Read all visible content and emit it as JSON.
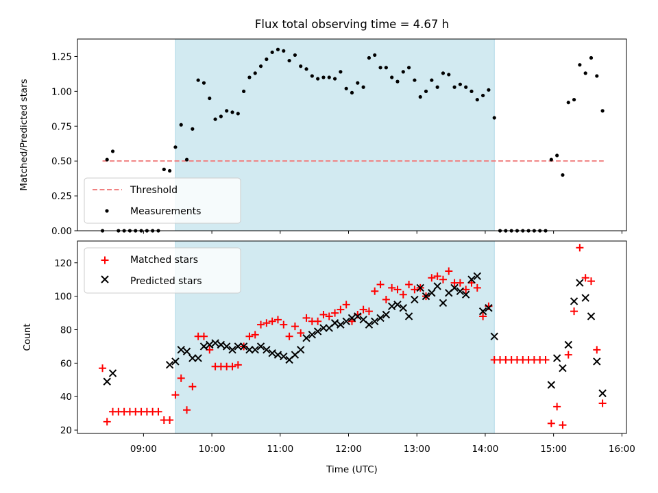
{
  "figure": {
    "title": "Flux total observing time = 4.67 h",
    "shaded_window": [
      "09:28",
      "14:08"
    ]
  },
  "colors": {
    "threshold": "#f08080",
    "measurements": "#000000",
    "matched": "#ff0000",
    "predicted": "#000000",
    "shade": "#add8e6"
  },
  "chart_data": [
    {
      "type": "scatter",
      "panel": "top",
      "xlabel": "",
      "ylabel": "Matched/Predicted stars",
      "xlim": [
        "08:02",
        "16:04"
      ],
      "ylim": [
        0,
        1.375
      ],
      "yticks": [
        0.0,
        0.25,
        0.5,
        0.75,
        1.0,
        1.25
      ],
      "ytick_labels": [
        "0.00",
        "0.25",
        "0.50",
        "0.75",
        "1.00",
        "1.25"
      ],
      "legend": {
        "position": "lower-left",
        "entries": [
          "Threshold",
          "Measurements"
        ]
      },
      "threshold": {
        "name": "Threshold",
        "y": 0.5,
        "x": [
          "08:24",
          "15:44"
        ]
      },
      "series": [
        {
          "name": "Measurements",
          "x": [
            "08:24",
            "08:28",
            "08:33",
            "08:38",
            "08:43",
            "08:48",
            "08:53",
            "08:58",
            "09:03",
            "09:08",
            "09:13",
            "09:18",
            "09:23",
            "09:28",
            "09:33",
            "09:38",
            "09:43",
            "09:48",
            "09:53",
            "09:58",
            "10:03",
            "10:08",
            "10:13",
            "10:18",
            "10:23",
            "10:28",
            "10:33",
            "10:38",
            "10:43",
            "10:48",
            "10:53",
            "10:58",
            "11:03",
            "11:08",
            "11:13",
            "11:18",
            "11:23",
            "11:28",
            "11:33",
            "11:38",
            "11:43",
            "11:48",
            "11:53",
            "11:58",
            "12:03",
            "12:08",
            "12:13",
            "12:18",
            "12:23",
            "12:28",
            "12:33",
            "12:38",
            "12:43",
            "12:48",
            "12:53",
            "12:58",
            "13:03",
            "13:08",
            "13:13",
            "13:18",
            "13:23",
            "13:28",
            "13:33",
            "13:38",
            "13:43",
            "13:48",
            "13:53",
            "13:58",
            "14:03",
            "14:08",
            "14:13",
            "14:18",
            "14:23",
            "14:28",
            "14:33",
            "14:38",
            "14:43",
            "14:48",
            "14:53",
            "14:58",
            "15:03",
            "15:08",
            "15:13",
            "15:18",
            "15:23",
            "15:28",
            "15:33",
            "15:38",
            "15:43"
          ],
          "y": [
            0.0,
            0.51,
            0.57,
            0.0,
            0.0,
            0.0,
            0.0,
            0.0,
            0.0,
            0.0,
            0.0,
            0.44,
            0.43,
            0.6,
            0.76,
            0.51,
            0.73,
            1.08,
            1.06,
            0.95,
            0.8,
            0.82,
            0.86,
            0.85,
            0.84,
            1.0,
            1.1,
            1.13,
            1.18,
            1.23,
            1.28,
            1.3,
            1.29,
            1.22,
            1.26,
            1.18,
            1.16,
            1.11,
            1.09,
            1.1,
            1.1,
            1.09,
            1.14,
            1.02,
            0.99,
            1.06,
            1.03,
            1.24,
            1.26,
            1.17,
            1.17,
            1.1,
            1.07,
            1.14,
            1.17,
            1.08,
            0.96,
            1.0,
            1.08,
            1.03,
            1.13,
            1.12,
            1.03,
            1.05,
            1.03,
            1.0,
            0.94,
            0.97,
            1.01,
            0.81,
            0.0,
            0.0,
            0.0,
            0.0,
            0.0,
            0.0,
            0.0,
            0.0,
            0.0,
            0.51,
            0.54,
            0.4,
            0.92,
            0.94,
            1.19,
            1.13,
            1.24,
            1.11,
            0.86
          ]
        }
      ]
    },
    {
      "type": "scatter",
      "panel": "bottom",
      "xlabel": "Time (UTC)",
      "ylabel": "Count",
      "xlim": [
        "08:02",
        "16:04"
      ],
      "ylim": [
        18,
        133
      ],
      "xticks": [
        "09:00",
        "10:00",
        "11:00",
        "12:00",
        "13:00",
        "14:00",
        "15:00",
        "16:00"
      ],
      "yticks": [
        20,
        40,
        60,
        80,
        100,
        120
      ],
      "ytick_labels": [
        "20",
        "40",
        "60",
        "80",
        "100",
        "120"
      ],
      "legend": {
        "position": "upper-left",
        "entries": [
          "Matched stars",
          "Predicted stars"
        ]
      },
      "series": [
        {
          "name": "Matched stars",
          "marker": "plus",
          "x": [
            "08:24",
            "08:28",
            "08:33",
            "08:38",
            "08:43",
            "08:48",
            "08:53",
            "08:58",
            "09:03",
            "09:08",
            "09:13",
            "09:18",
            "09:23",
            "09:28",
            "09:33",
            "09:38",
            "09:43",
            "09:48",
            "09:53",
            "09:58",
            "10:03",
            "10:08",
            "10:13",
            "10:18",
            "10:23",
            "10:28",
            "10:33",
            "10:38",
            "10:43",
            "10:48",
            "10:53",
            "10:58",
            "11:03",
            "11:08",
            "11:13",
            "11:18",
            "11:23",
            "11:28",
            "11:33",
            "11:38",
            "11:43",
            "11:48",
            "11:53",
            "11:58",
            "12:03",
            "12:08",
            "12:13",
            "12:18",
            "12:23",
            "12:28",
            "12:33",
            "12:38",
            "12:43",
            "12:48",
            "12:53",
            "12:58",
            "13:03",
            "13:08",
            "13:13",
            "13:18",
            "13:23",
            "13:28",
            "13:33",
            "13:38",
            "13:43",
            "13:48",
            "13:53",
            "13:58",
            "14:03",
            "14:08",
            "14:13",
            "14:18",
            "14:23",
            "14:28",
            "14:33",
            "14:38",
            "14:43",
            "14:48",
            "14:53",
            "14:58",
            "15:03",
            "15:08",
            "15:13",
            "15:18",
            "15:23",
            "15:28",
            "15:33",
            "15:38",
            "15:43"
          ],
          "y": [
            57,
            25,
            31,
            31,
            31,
            31,
            31,
            31,
            31,
            31,
            31,
            26,
            26,
            41,
            51,
            32,
            46,
            76,
            76,
            68,
            58,
            58,
            58,
            58,
            59,
            70,
            76,
            77,
            83,
            84,
            85,
            86,
            83,
            76,
            82,
            78,
            87,
            85,
            85,
            89,
            88,
            90,
            92,
            95,
            85,
            89,
            92,
            91,
            103,
            107,
            98,
            105,
            104,
            101,
            107,
            104,
            105,
            100,
            111,
            112,
            110,
            115,
            108,
            108,
            104,
            108,
            105,
            88,
            94,
            62,
            62,
            62,
            62,
            62,
            62,
            62,
            62,
            62,
            62,
            24,
            34,
            23,
            65,
            91,
            129,
            111,
            109,
            68,
            36
          ]
        },
        {
          "name": "Predicted stars",
          "marker": "x",
          "x": [
            "08:28",
            "08:33",
            "09:23",
            "09:28",
            "09:33",
            "09:38",
            "09:43",
            "09:48",
            "09:53",
            "09:58",
            "10:03",
            "10:08",
            "10:13",
            "10:18",
            "10:23",
            "10:28",
            "10:33",
            "10:38",
            "10:43",
            "10:48",
            "10:53",
            "10:58",
            "11:03",
            "11:08",
            "11:13",
            "11:18",
            "11:23",
            "11:28",
            "11:33",
            "11:38",
            "11:43",
            "11:48",
            "11:53",
            "11:58",
            "12:03",
            "12:08",
            "12:13",
            "12:18",
            "12:23",
            "12:28",
            "12:33",
            "12:38",
            "12:43",
            "12:48",
            "12:53",
            "12:58",
            "13:03",
            "13:08",
            "13:13",
            "13:18",
            "13:23",
            "13:28",
            "13:33",
            "13:38",
            "13:43",
            "13:48",
            "13:53",
            "13:58",
            "14:03",
            "14:08",
            "14:58",
            "15:03",
            "15:08",
            "15:13",
            "15:18",
            "15:23",
            "15:28",
            "15:33",
            "15:38",
            "15:43"
          ],
          "y": [
            49,
            54,
            59,
            61,
            68,
            67,
            63,
            63,
            70,
            71,
            72,
            71,
            70,
            68,
            70,
            70,
            68,
            68,
            70,
            68,
            66,
            65,
            64,
            62,
            65,
            68,
            75,
            77,
            79,
            81,
            81,
            84,
            83,
            85,
            87,
            88,
            86,
            83,
            85,
            87,
            89,
            94,
            95,
            93,
            88,
            98,
            105,
            100,
            102,
            106,
            96,
            102,
            105,
            103,
            101,
            110,
            112,
            91,
            93,
            76,
            47,
            63,
            57,
            71,
            97,
            108,
            99,
            88,
            61,
            42
          ]
        }
      ]
    }
  ]
}
